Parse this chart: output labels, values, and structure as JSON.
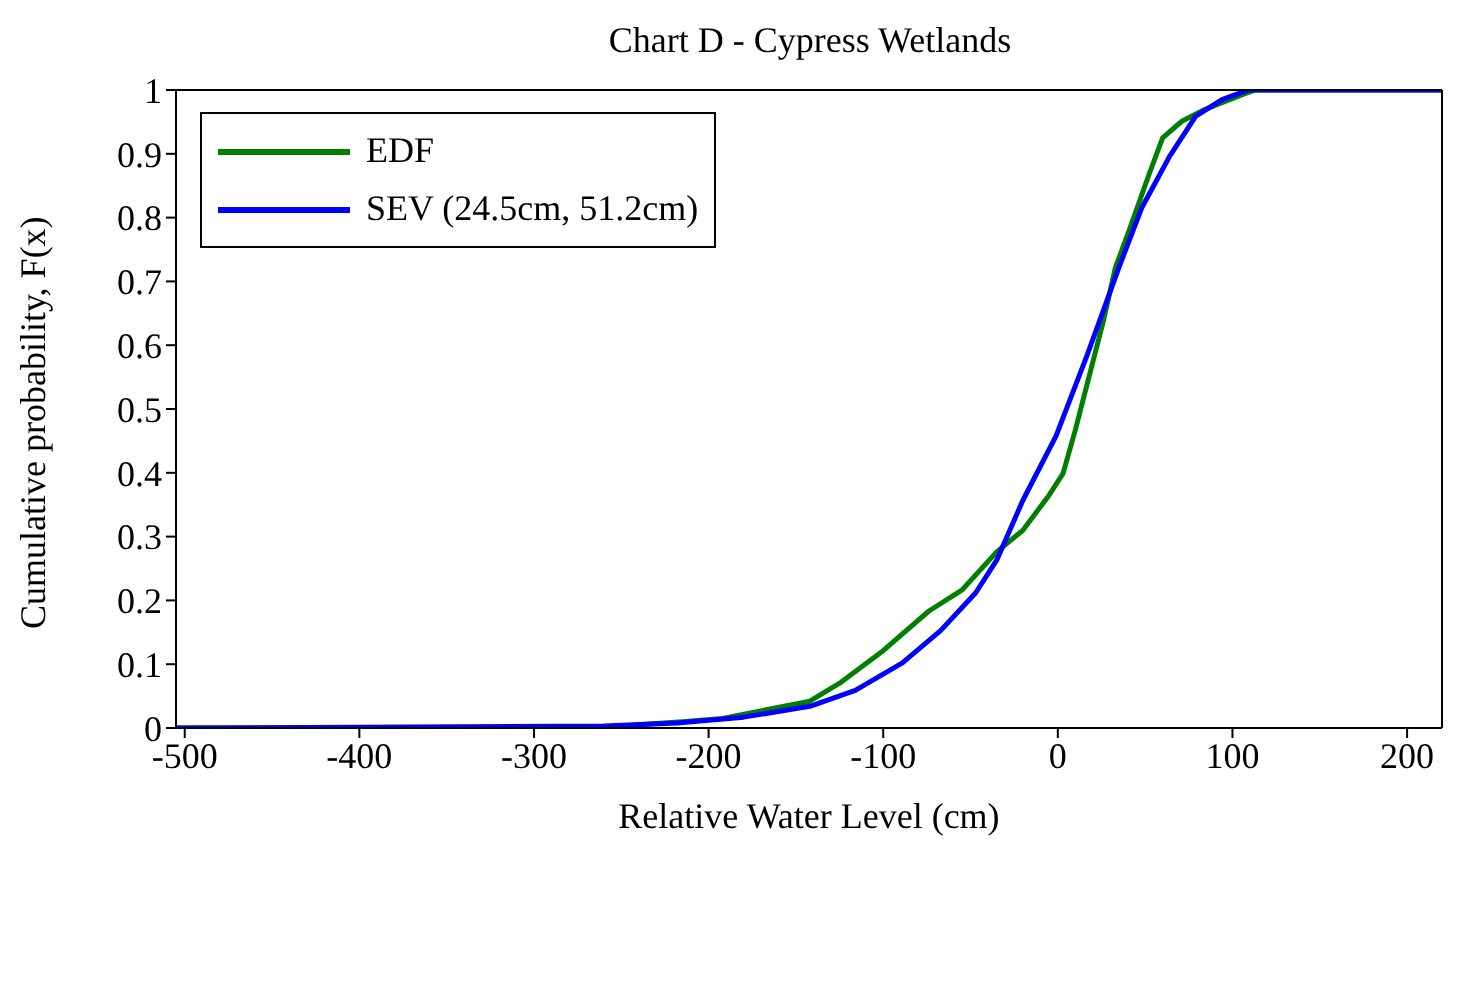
{
  "chart_data": {
    "type": "line",
    "title": "Chart D - Cypress Wetlands",
    "xlabel": "Relative Water Level (cm)",
    "ylabel": "Cumulative probability, F(x)",
    "xlim": [
      -505,
      220
    ],
    "xticks": [
      -500,
      -400,
      -300,
      -200,
      -100,
      0,
      100,
      200
    ],
    "ylim": [
      0,
      1
    ],
    "yticks": [
      0,
      0.1,
      0.2,
      0.3,
      0.4,
      0.5,
      0.6,
      0.7,
      0.8,
      0.9,
      1
    ],
    "legend": "top left",
    "marker": "none",
    "line_style": "solid",
    "series": [
      {
        "name": "EDF",
        "color": "#007f00",
        "x": [
          -505,
          -260,
          -240,
          -215,
          -192,
          -142,
          -124,
          -101,
          -74,
          -55,
          -35,
          -20,
          -5,
          3,
          10,
          18,
          26,
          33,
          41,
          52,
          60,
          71,
          83,
          94,
          106,
          113,
          220
        ],
        "values": [
          0,
          0,
          0.005,
          0.01,
          0.015,
          0.042,
          0.072,
          0.119,
          0.183,
          0.216,
          0.276,
          0.31,
          0.365,
          0.399,
          0.467,
          0.552,
          0.637,
          0.722,
          0.781,
          0.866,
          0.925,
          0.951,
          0.968,
          0.98,
          0.993,
          1,
          1
        ]
      },
      {
        "name": "SEV (24.5cm, 51.2cm)",
        "color": "#0000ff",
        "x": [
          -505,
          -260,
          -218,
          -180,
          -142,
          -116,
          -89,
          -67,
          -47,
          -35,
          -20,
          -1,
          17,
          35,
          48,
          64,
          79,
          94,
          109,
          220
        ],
        "values": [
          0,
          0.003,
          0.008,
          0.017,
          0.034,
          0.059,
          0.102,
          0.153,
          0.212,
          0.263,
          0.357,
          0.458,
          0.586,
          0.722,
          0.815,
          0.896,
          0.959,
          0.985,
          1,
          1
        ]
      }
    ]
  }
}
